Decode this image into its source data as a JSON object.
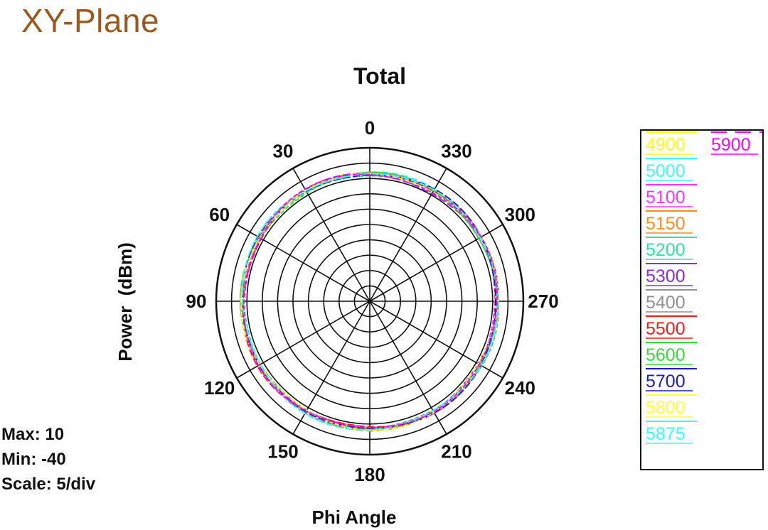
{
  "page_title": "XY-Plane",
  "stats": {
    "max_label": "Max: 10",
    "min_label": "Min: -40",
    "scale_label": "Scale: 5/div"
  },
  "chart_data": {
    "type": "polar-line",
    "title": "Total",
    "xlabel": "Phi Angle",
    "ylabel": "Power  (dBm)",
    "radial_range": [
      -40,
      10
    ],
    "radial_step": 5,
    "angle_direction": "counterclockwise",
    "zero_location": "top",
    "angle_tick_labels": [
      "0",
      "30",
      "60",
      "90",
      "120",
      "150",
      "180",
      "210",
      "240",
      "270",
      "300",
      "330"
    ],
    "angle_ticks": [
      0,
      30,
      60,
      90,
      120,
      150,
      180,
      210,
      240,
      270,
      300,
      330
    ],
    "legend_placement": "right",
    "series": [
      {
        "name": "4900",
        "color": "#ffff00",
        "r_mean": 1.5,
        "ripple": 0.5
      },
      {
        "name": "5000",
        "color": "#33ffff",
        "r_mean": 1.7,
        "ripple": 0.4
      },
      {
        "name": "5100",
        "color": "#ff33ff",
        "r_mean": 1.4,
        "ripple": 0.5
      },
      {
        "name": "5150",
        "color": "#ff8c1a",
        "r_mean": 1.6,
        "ripple": 0.4
      },
      {
        "name": "5200",
        "color": "#33e0a0",
        "r_mean": 1.5,
        "ripple": 0.5
      },
      {
        "name": "5300",
        "color": "#8a2be2",
        "r_mean": 1.3,
        "ripple": 0.6
      },
      {
        "name": "5400",
        "color": "#909090",
        "r_mean": 1.6,
        "ripple": 0.4
      },
      {
        "name": "5500",
        "color": "#ff1a1a",
        "r_mean": 1.5,
        "ripple": 0.5
      },
      {
        "name": "5600",
        "color": "#33dd33",
        "r_mean": 1.4,
        "ripple": 0.5
      },
      {
        "name": "5700",
        "color": "#1a1acc",
        "r_mean": 1.6,
        "ripple": 0.4
      },
      {
        "name": "5800",
        "color": "#ffff33",
        "r_mean": 1.5,
        "ripple": 0.5
      },
      {
        "name": "5875",
        "color": "#33ffff",
        "r_mean": 1.7,
        "ripple": 0.4
      },
      {
        "name": "5900",
        "color": "#ff00ff",
        "r_mean": 1.4,
        "ripple": 0.5
      }
    ]
  }
}
